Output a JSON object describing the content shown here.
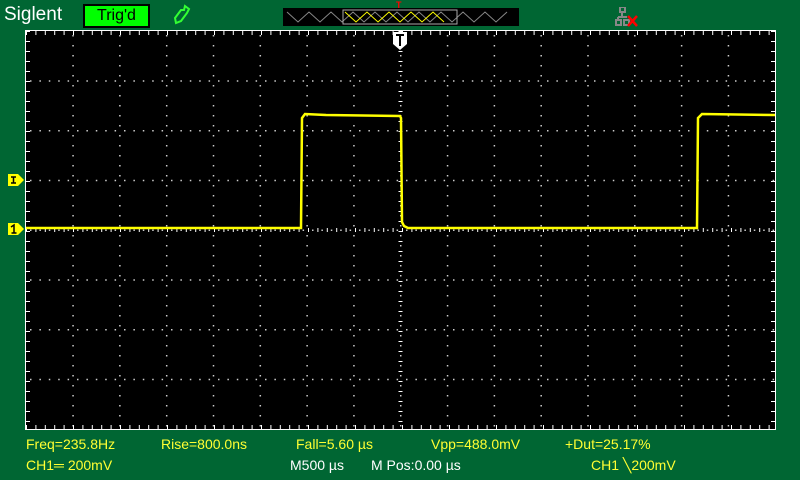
{
  "header": {
    "brand": "Siglent",
    "trigger_status": "Trig'd",
    "trigger_status_color": "#00ff00",
    "icons": [
      "probe-icon",
      "timebase-overview",
      "network-disconnected-icon"
    ]
  },
  "screen": {
    "trigger_marker": "T",
    "channel_marker": "1",
    "trigger_level_marker": "T",
    "trace_color": "#ffff00",
    "timebase": "500µs/div",
    "waveform": "square wave"
  },
  "measurements": {
    "freq": "Freq=235.8Hz",
    "rise": "Rise=800.0ns",
    "fall": "Fall=5.60 µs",
    "vpp": "Vpp=488.0mV",
    "duty": "+Dut=25.17%"
  },
  "status": {
    "ch1_scale": "CH1═ 200mV",
    "timebase": "M500 µs",
    "mpos": "M Pos:0.00 µs",
    "trigger": "CH1 ╲200mV"
  }
}
